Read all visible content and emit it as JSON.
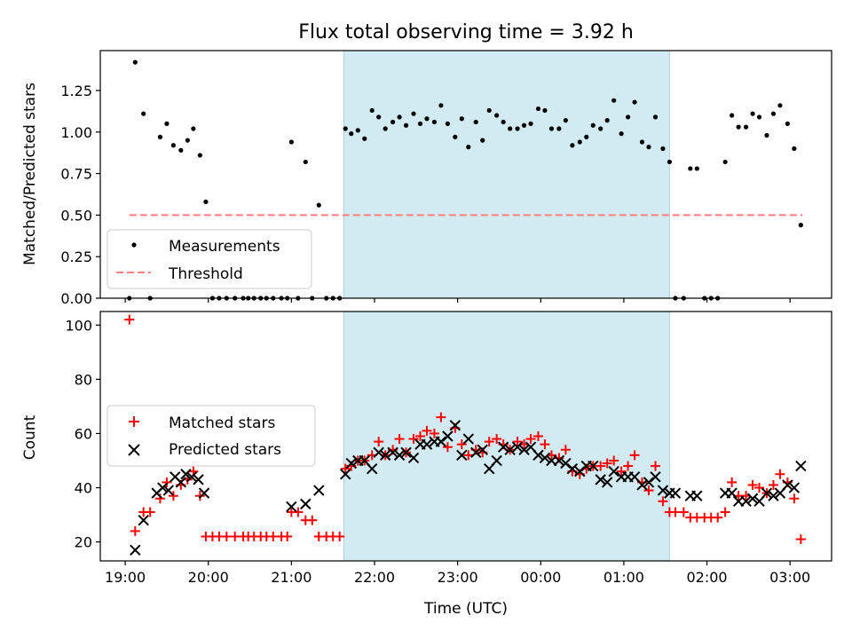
{
  "figure": {
    "title": "Flux total observing time = 3.92 h"
  },
  "colors": {
    "band": "#add8e6",
    "measurement": "#000000",
    "threshold": "#ff7f7f",
    "matched": "#ff0000",
    "predicted": "#000000"
  },
  "chart_data": [
    {
      "type": "scatter",
      "name": "ratio_panel",
      "title": "Flux total observing time = 3.92 h",
      "xlabel": "",
      "ylabel": "Matched/Predicted stars",
      "xlim": [
        18.7,
        27.5
      ],
      "ylim": [
        0.0,
        1.49
      ],
      "yticks": [
        0.0,
        0.25,
        0.5,
        0.75,
        1.0,
        1.25
      ],
      "ytick_labels": [
        "0.00",
        "0.25",
        "0.50",
        "0.75",
        "1.00",
        "1.25"
      ],
      "x_tick_values": [
        19,
        20,
        21,
        22,
        23,
        24,
        25,
        26,
        27
      ],
      "show_x_tick_labels": false,
      "shaded_span": [
        21.63,
        25.55
      ],
      "legend": {
        "position": "lower-left",
        "entries": [
          "Measurements",
          "Threshold"
        ]
      },
      "threshold": {
        "name": "Threshold",
        "value": 0.5,
        "x": [
          19.05,
          27.15
        ]
      },
      "series": [
        {
          "name": "Measurements",
          "marker": "dot",
          "x": [
            19.05,
            19.12,
            19.22,
            19.3,
            19.42,
            19.5,
            19.58,
            19.67,
            19.75,
            19.82,
            19.9,
            19.97,
            20.05,
            20.13,
            20.22,
            20.32,
            20.42,
            20.48,
            20.55,
            20.63,
            20.7,
            20.78,
            20.88,
            20.95,
            21.0,
            21.08,
            21.17,
            21.25,
            21.33,
            21.42,
            21.5,
            21.58,
            21.65,
            21.72,
            21.8,
            21.88,
            21.97,
            22.05,
            22.13,
            22.22,
            22.3,
            22.38,
            22.47,
            22.55,
            22.63,
            22.72,
            22.8,
            22.88,
            22.97,
            23.05,
            23.13,
            23.22,
            23.3,
            23.38,
            23.47,
            23.55,
            23.63,
            23.72,
            23.8,
            23.88,
            23.97,
            24.05,
            24.13,
            24.22,
            24.3,
            24.38,
            24.47,
            24.55,
            24.63,
            24.72,
            24.8,
            24.88,
            24.97,
            25.05,
            25.13,
            25.22,
            25.3,
            25.38,
            25.47,
            25.55,
            25.62,
            25.72,
            25.8,
            25.88,
            25.97,
            26.05,
            26.13,
            26.22,
            26.3,
            26.38,
            26.47,
            26.55,
            26.63,
            26.72,
            26.8,
            26.88,
            26.97,
            27.05,
            27.13
          ],
          "y": [
            0.0,
            1.42,
            1.11,
            0.0,
            0.97,
            1.05,
            0.92,
            0.89,
            0.95,
            1.02,
            0.86,
            0.58,
            0.0,
            0.0,
            0.0,
            0.0,
            0.0,
            0.0,
            0.0,
            0.0,
            0.0,
            0.0,
            0.0,
            0.0,
            0.94,
            0.0,
            0.82,
            0.0,
            0.56,
            0.0,
            0.0,
            0.0,
            1.02,
            0.99,
            1.01,
            0.96,
            1.13,
            1.09,
            1.02,
            1.06,
            1.09,
            1.04,
            1.11,
            1.05,
            1.08,
            1.06,
            1.16,
            1.05,
            0.97,
            1.08,
            0.91,
            1.06,
            0.95,
            1.13,
            1.1,
            1.06,
            1.02,
            1.02,
            1.04,
            1.05,
            1.14,
            1.13,
            1.02,
            1.02,
            1.07,
            0.92,
            0.94,
            0.97,
            1.04,
            1.02,
            1.07,
            1.19,
            0.99,
            1.09,
            1.18,
            0.94,
            0.91,
            1.09,
            0.9,
            0.82,
            0.0,
            0.0,
            0.78,
            0.78,
            0.0,
            0.0,
            0.0,
            0.82,
            1.1,
            1.03,
            1.03,
            1.11,
            1.09,
            0.98,
            1.11,
            1.16,
            1.05,
            0.9,
            0.44
          ]
        }
      ]
    },
    {
      "type": "scatter",
      "name": "count_panel",
      "title": "",
      "xlabel": "Time (UTC)",
      "ylabel": "Count",
      "xlim": [
        18.7,
        27.5
      ],
      "ylim": [
        13,
        105
      ],
      "yticks": [
        20,
        40,
        60,
        80,
        100
      ],
      "ytick_labels": [
        "20",
        "40",
        "60",
        "80",
        "100"
      ],
      "x_tick_values": [
        19,
        20,
        21,
        22,
        23,
        24,
        25,
        26,
        27
      ],
      "xtick_labels": [
        "19:00",
        "20:00",
        "21:00",
        "22:00",
        "23:00",
        "00:00",
        "01:00",
        "02:00",
        "03:00"
      ],
      "shaded_span": [
        21.63,
        25.55
      ],
      "legend": {
        "position": "center-left",
        "entries": [
          "Matched stars",
          "Predicted stars"
        ]
      },
      "series": [
        {
          "name": "Matched stars",
          "marker": "plus",
          "x": [
            19.05,
            19.12,
            19.22,
            19.3,
            19.42,
            19.5,
            19.58,
            19.67,
            19.75,
            19.82,
            19.9,
            19.97,
            20.05,
            20.13,
            20.22,
            20.32,
            20.42,
            20.48,
            20.55,
            20.63,
            20.7,
            20.78,
            20.88,
            20.95,
            21.0,
            21.08,
            21.17,
            21.25,
            21.33,
            21.42,
            21.5,
            21.58,
            21.65,
            21.72,
            21.8,
            21.88,
            21.97,
            22.05,
            22.13,
            22.22,
            22.3,
            22.38,
            22.47,
            22.55,
            22.63,
            22.72,
            22.8,
            22.88,
            22.97,
            23.05,
            23.13,
            23.22,
            23.3,
            23.38,
            23.47,
            23.55,
            23.63,
            23.72,
            23.8,
            23.88,
            23.97,
            24.05,
            24.13,
            24.22,
            24.3,
            24.38,
            24.47,
            24.55,
            24.63,
            24.72,
            24.8,
            24.88,
            24.97,
            25.05,
            25.13,
            25.22,
            25.3,
            25.38,
            25.47,
            25.55,
            25.62,
            25.72,
            25.8,
            25.88,
            25.97,
            26.05,
            26.13,
            26.22,
            26.3,
            26.38,
            26.47,
            26.55,
            26.63,
            26.72,
            26.8,
            26.88,
            26.97,
            27.05,
            27.13
          ],
          "y": [
            102,
            24,
            31,
            31,
            36,
            42,
            37,
            41,
            43,
            46,
            37,
            22,
            22,
            22,
            22,
            22,
            22,
            22,
            22,
            22,
            22,
            22,
            22,
            22,
            31,
            31,
            28,
            28,
            22,
            22,
            22,
            22,
            47,
            48,
            50,
            50,
            52,
            57,
            52,
            54,
            58,
            53,
            58,
            59,
            61,
            60,
            66,
            55,
            62,
            56,
            52,
            54,
            53,
            57,
            58,
            56,
            54,
            57,
            56,
            58,
            59,
            56,
            52,
            51,
            54,
            46,
            45,
            47,
            48,
            48,
            49,
            50,
            46,
            48,
            52,
            42,
            39,
            48,
            35,
            31,
            31,
            31,
            29,
            29,
            29,
            29,
            29,
            31,
            42,
            37,
            37,
            41,
            40,
            38,
            41,
            45,
            42,
            36,
            21
          ]
        },
        {
          "name": "Predicted stars",
          "marker": "x",
          "x": [
            19.12,
            19.22,
            19.38,
            19.45,
            19.52,
            19.6,
            19.67,
            19.73,
            19.8,
            19.88,
            19.95,
            21.0,
            21.17,
            21.33,
            21.65,
            21.72,
            21.8,
            21.88,
            21.97,
            22.05,
            22.13,
            22.22,
            22.3,
            22.38,
            22.47,
            22.55,
            22.63,
            22.72,
            22.8,
            22.88,
            22.97,
            23.05,
            23.13,
            23.22,
            23.3,
            23.38,
            23.47,
            23.55,
            23.63,
            23.72,
            23.8,
            23.88,
            23.97,
            24.05,
            24.13,
            24.22,
            24.3,
            24.38,
            24.47,
            24.55,
            24.63,
            24.72,
            24.8,
            24.88,
            24.97,
            25.05,
            25.13,
            25.22,
            25.3,
            25.38,
            25.47,
            25.55,
            25.62,
            25.8,
            25.88,
            26.22,
            26.3,
            26.38,
            26.47,
            26.55,
            26.63,
            26.72,
            26.8,
            26.88,
            26.97,
            27.05,
            27.13
          ],
          "y": [
            17,
            28,
            38,
            40,
            39,
            44,
            42,
            45,
            44,
            43,
            38,
            33,
            34,
            39,
            45,
            49,
            50,
            50,
            47,
            53,
            52,
            53,
            52,
            53,
            51,
            56,
            56,
            57,
            57,
            59,
            63,
            52,
            58,
            53,
            54,
            47,
            50,
            55,
            54,
            55,
            54,
            55,
            52,
            51,
            50,
            50,
            49,
            47,
            46,
            48,
            48,
            43,
            42,
            46,
            44,
            44,
            44,
            41,
            42,
            44,
            39,
            38,
            38,
            37,
            37,
            38,
            38,
            35,
            35,
            36,
            35,
            38,
            37,
            38,
            41,
            40,
            48
          ]
        }
      ]
    }
  ]
}
